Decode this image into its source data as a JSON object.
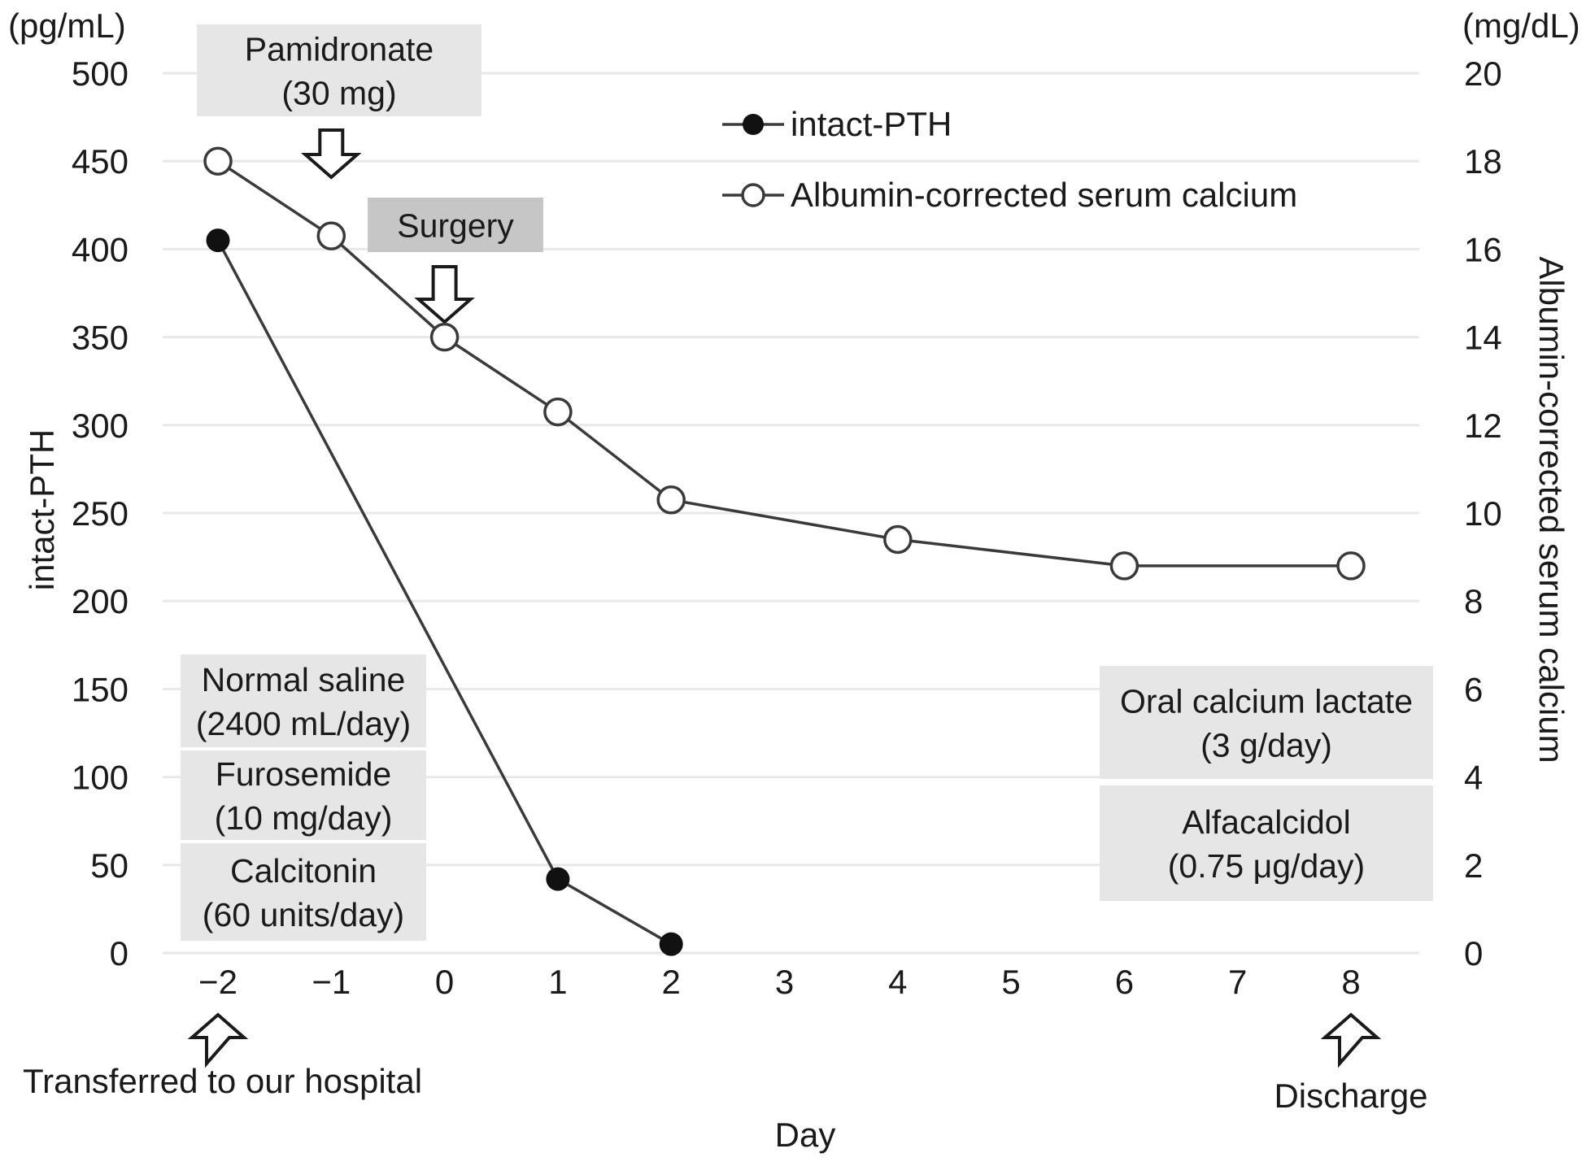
{
  "chart_data": {
    "type": "line",
    "title": "",
    "grid": "horizontal",
    "legend_position": "top-center",
    "x": {
      "label": "Day",
      "range": [
        -2,
        8
      ],
      "ticks": [
        -2,
        -1,
        0,
        1,
        2,
        3,
        4,
        5,
        6,
        7,
        8
      ],
      "tick_labels": [
        "−2",
        "−1",
        "0",
        "1",
        "2",
        "3",
        "4",
        "5",
        "6",
        "7",
        "8"
      ]
    },
    "left_y": {
      "unit": "(pg/mL)",
      "label": "intact-PTH",
      "range": [
        0,
        500
      ],
      "ticks": [
        500,
        450,
        400,
        350,
        300,
        250,
        200,
        150,
        100,
        50,
        0
      ]
    },
    "right_y": {
      "unit": "(mg/dL)",
      "label": "Albumin-corrected serum calcium",
      "range": [
        0,
        20
      ],
      "ticks": [
        20,
        18,
        16,
        14,
        12,
        10,
        8,
        6,
        4,
        2,
        0
      ]
    },
    "series": [
      {
        "name": "intact-PTH",
        "axis": "left",
        "marker": "filled-circle",
        "points": [
          {
            "x": -2,
            "y": 405
          },
          {
            "x": 1,
            "y": 42
          },
          {
            "x": 2,
            "y": 5
          }
        ]
      },
      {
        "name": "Albumin-corrected serum calcium",
        "axis": "right",
        "marker": "open-circle",
        "points": [
          {
            "x": -2,
            "y": 18.0
          },
          {
            "x": -1,
            "y": 16.3
          },
          {
            "x": 0,
            "y": 14.0
          },
          {
            "x": 1,
            "y": 12.3
          },
          {
            "x": 2,
            "y": 10.3
          },
          {
            "x": 4,
            "y": 9.4
          },
          {
            "x": 6,
            "y": 8.8
          },
          {
            "x": 8,
            "y": 8.8
          }
        ]
      }
    ]
  },
  "annotations": {
    "boxes": [
      {
        "id": "pamidronate",
        "lines": [
          "Pamidronate",
          "(30 mg)"
        ],
        "tone": "light"
      },
      {
        "id": "surgery",
        "lines": [
          "Surgery"
        ],
        "tone": "dark"
      },
      {
        "id": "normal-saline",
        "lines": [
          "Normal saline",
          "(2400 mL/day)"
        ],
        "tone": "light"
      },
      {
        "id": "furosemide",
        "lines": [
          "Furosemide",
          "(10 mg/day)"
        ],
        "tone": "light"
      },
      {
        "id": "calcitonin",
        "lines": [
          "Calcitonin",
          "(60 units/day)"
        ],
        "tone": "light"
      },
      {
        "id": "oral-calcium-lactate",
        "lines": [
          "Oral calcium lactate",
          "(3 g/day)"
        ],
        "tone": "light"
      },
      {
        "id": "alfacalcidol",
        "lines": [
          "Alfacalcidol",
          "(0.75 μg/day)"
        ],
        "tone": "light"
      }
    ],
    "arrows": [
      {
        "id": "pamidronate-arrow",
        "direction": "down",
        "day": -1
      },
      {
        "id": "surgery-arrow",
        "direction": "down",
        "day": 0
      },
      {
        "id": "transferred-arrow",
        "direction": "up",
        "day": -2
      },
      {
        "id": "discharge-arrow",
        "direction": "up",
        "day": 8
      }
    ],
    "transferred_label": "Transferred to our hospital",
    "discharge_label": "Discharge"
  },
  "colors": {
    "line": "#3a3a3a",
    "marker_fill": "#111111",
    "marker_open_fill": "#ffffff",
    "grid": "#e8e8e8",
    "box_light": "#e6e6e6",
    "box_dark": "#c6c6c6",
    "text": "#1a1a1a",
    "arrow_outline": "#1a1a1a",
    "arrow_fill": "#ffffff"
  }
}
